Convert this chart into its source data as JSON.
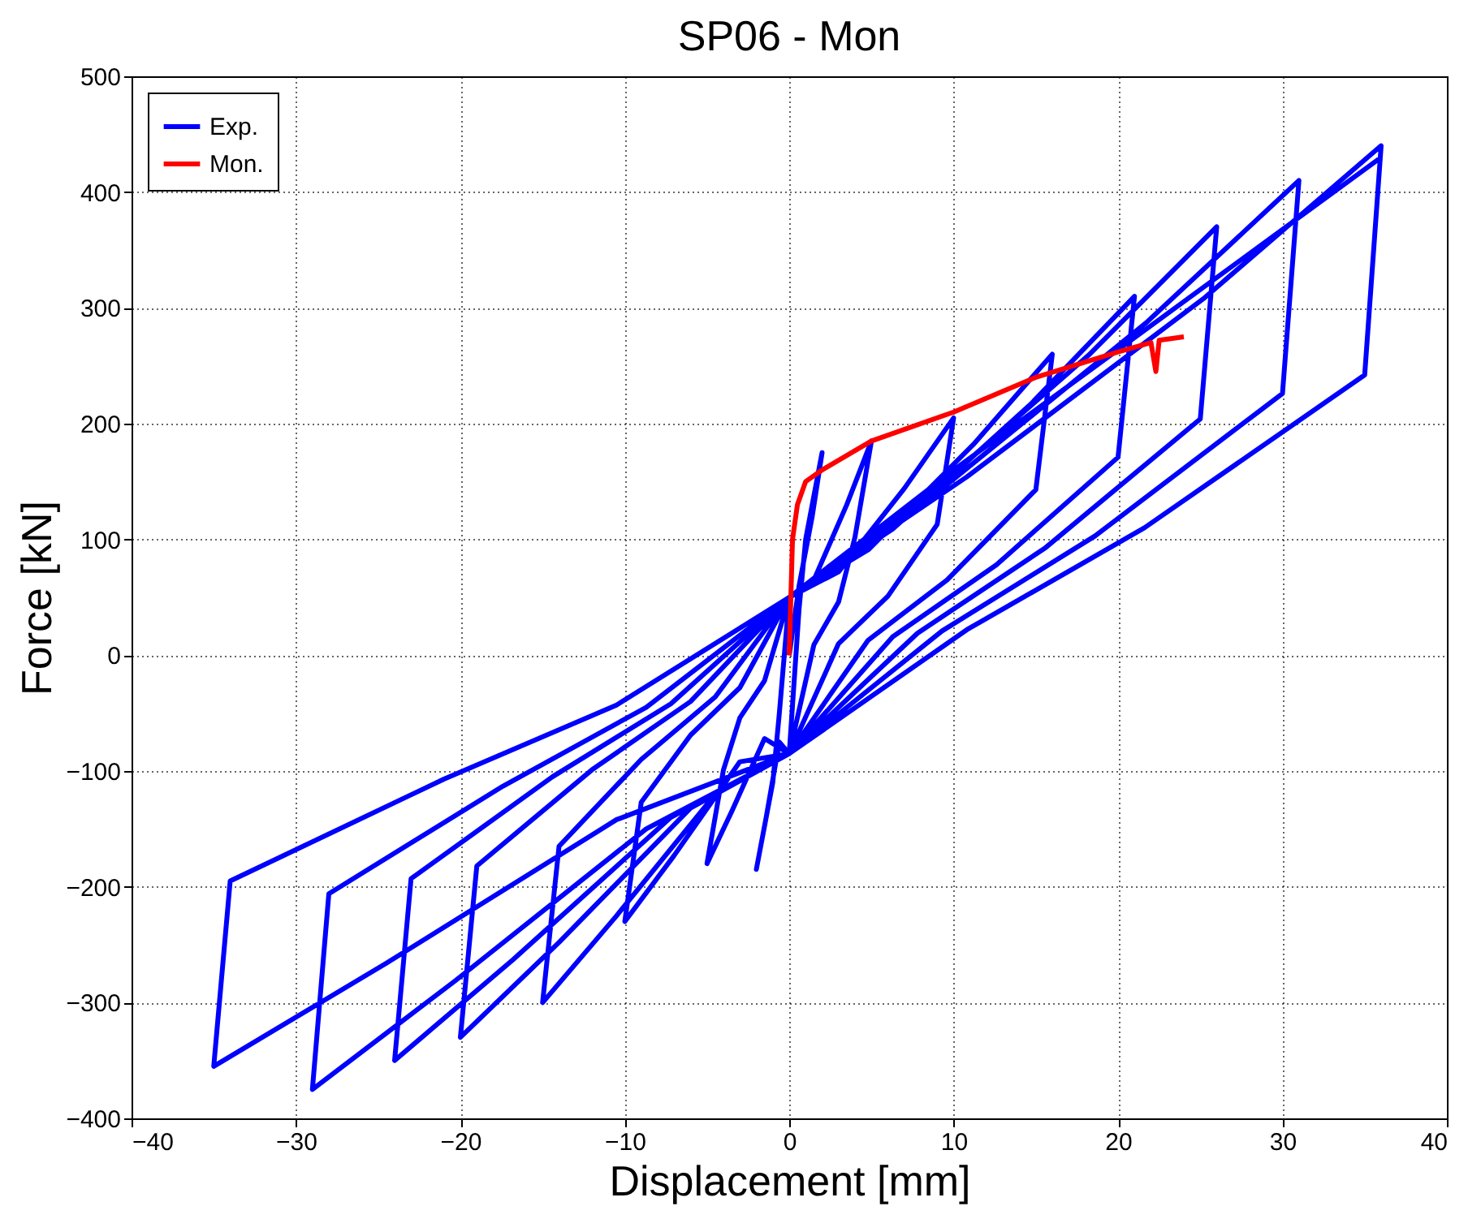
{
  "chart_data": {
    "type": "line",
    "title": "SP06 - Mon",
    "xlabel": "Displacement [mm]",
    "ylabel": "Force [kN]",
    "xlim": [
      -40,
      40
    ],
    "xticks": [
      -40,
      -30,
      -20,
      -10,
      0,
      10,
      20,
      30,
      40
    ],
    "ylim": [
      -400,
      500
    ],
    "yticks": [
      -400,
      -300,
      -200,
      -100,
      0,
      100,
      200,
      300,
      400,
      500
    ],
    "grid": true,
    "legend": "top left",
    "line_style": "solid",
    "marker": "none",
    "series": [
      {
        "name": "Exp.",
        "color": "#0000ff",
        "x": [
          0,
          0.6,
          1.4,
          2,
          1,
          0.6,
          0,
          -0.6,
          -1.4,
          -2,
          -1,
          -0.6,
          0,
          1.5,
          3.5,
          5,
          4,
          3,
          1.5,
          0,
          -1.5,
          -3.5,
          -5,
          -4,
          -3,
          -1.5,
          0,
          3,
          7,
          10,
          9,
          6,
          3,
          0,
          -3,
          -7,
          -10,
          -9,
          -6,
          -3,
          0,
          4.8,
          11.2,
          16,
          15,
          9.6,
          4.8,
          0,
          -4.5,
          -10.5,
          -15,
          -14,
          -9,
          -4.5,
          0,
          6.3,
          14.7,
          21,
          20,
          12.6,
          6.3,
          0,
          -6,
          -14,
          -20,
          -19,
          -12,
          -6,
          0,
          7.8,
          18.2,
          26,
          25,
          15.6,
          7.8,
          0,
          -7.2,
          -16.8,
          -24,
          -23,
          -14.4,
          -7.2,
          0,
          9.3,
          21.7,
          31,
          30,
          18.6,
          9.3,
          0,
          -8.7,
          -20.3,
          -29,
          -28,
          -17.4,
          -8.7,
          0,
          10.8,
          25.2,
          36,
          35,
          21.6,
          10.8,
          0,
          -10.5,
          -24.5,
          -35,
          -34,
          -21,
          -10.5,
          0,
          10,
          36
        ],
        "values": [
          0,
          60,
          120,
          175,
          100,
          40,
          -85,
          -75,
          -140,
          -185,
          -110,
          -50,
          50,
          65,
          130,
          185,
          102,
          46,
          9,
          -85,
          -72,
          -135,
          -180,
          -99,
          -54,
          -22,
          50,
          72,
          144,
          205,
          113,
          51,
          10,
          -85,
          -92,
          -173,
          -230,
          -127,
          -69,
          -28,
          50,
          91,
          182,
          260,
          143,
          65,
          13,
          -85,
          -120,
          -225,
          -300,
          -165,
          -90,
          -36,
          50,
          109,
          217,
          310,
          171,
          78,
          16,
          -85,
          -132,
          -248,
          -330,
          -182,
          -99,
          -40,
          50,
          130,
          259,
          370,
          204,
          93,
          19,
          -85,
          -140,
          -263,
          -350,
          -193,
          -105,
          -42,
          50,
          144,
          287,
          410,
          226,
          103,
          21,
          -85,
          -150,
          -281,
          -375,
          -206,
          -113,
          -45,
          50,
          154,
          308,
          440,
          242,
          110,
          22,
          -85,
          -142,
          -266,
          -355,
          -195,
          -107,
          -43,
          50,
          160,
          430
        ]
      },
      {
        "name": "Mon.",
        "color": "#ff0000",
        "x": [
          0,
          0.2,
          0.5,
          1,
          2,
          5,
          10,
          15,
          20,
          22,
          22.3,
          22.5,
          24
        ],
        "values": [
          0,
          100,
          130,
          150,
          160,
          185,
          210,
          240,
          262,
          270,
          245,
          272,
          275
        ]
      }
    ]
  }
}
